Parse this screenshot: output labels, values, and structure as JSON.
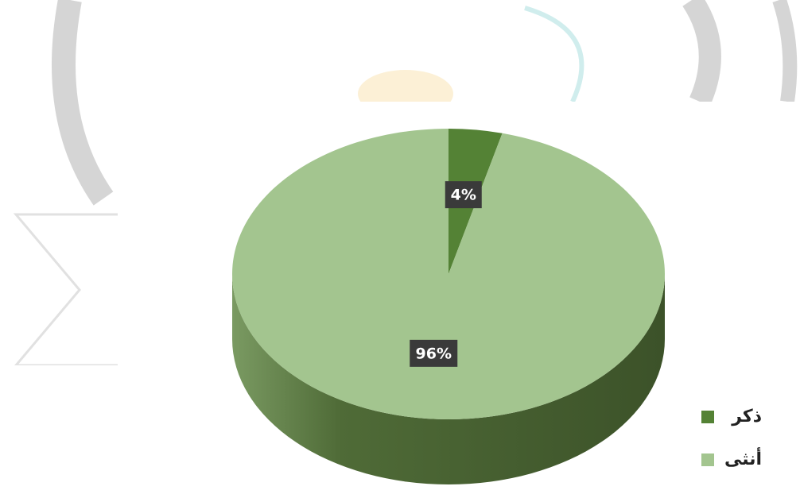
{
  "chart_data": {
    "type": "pie",
    "categories": [
      "ذكر",
      "أنثى"
    ],
    "values": [
      4,
      96
    ],
    "value_labels": [
      "4%",
      "96%"
    ],
    "colors": [
      "#548235",
      "#a3c58f"
    ],
    "legend": "bottom-right"
  }
}
